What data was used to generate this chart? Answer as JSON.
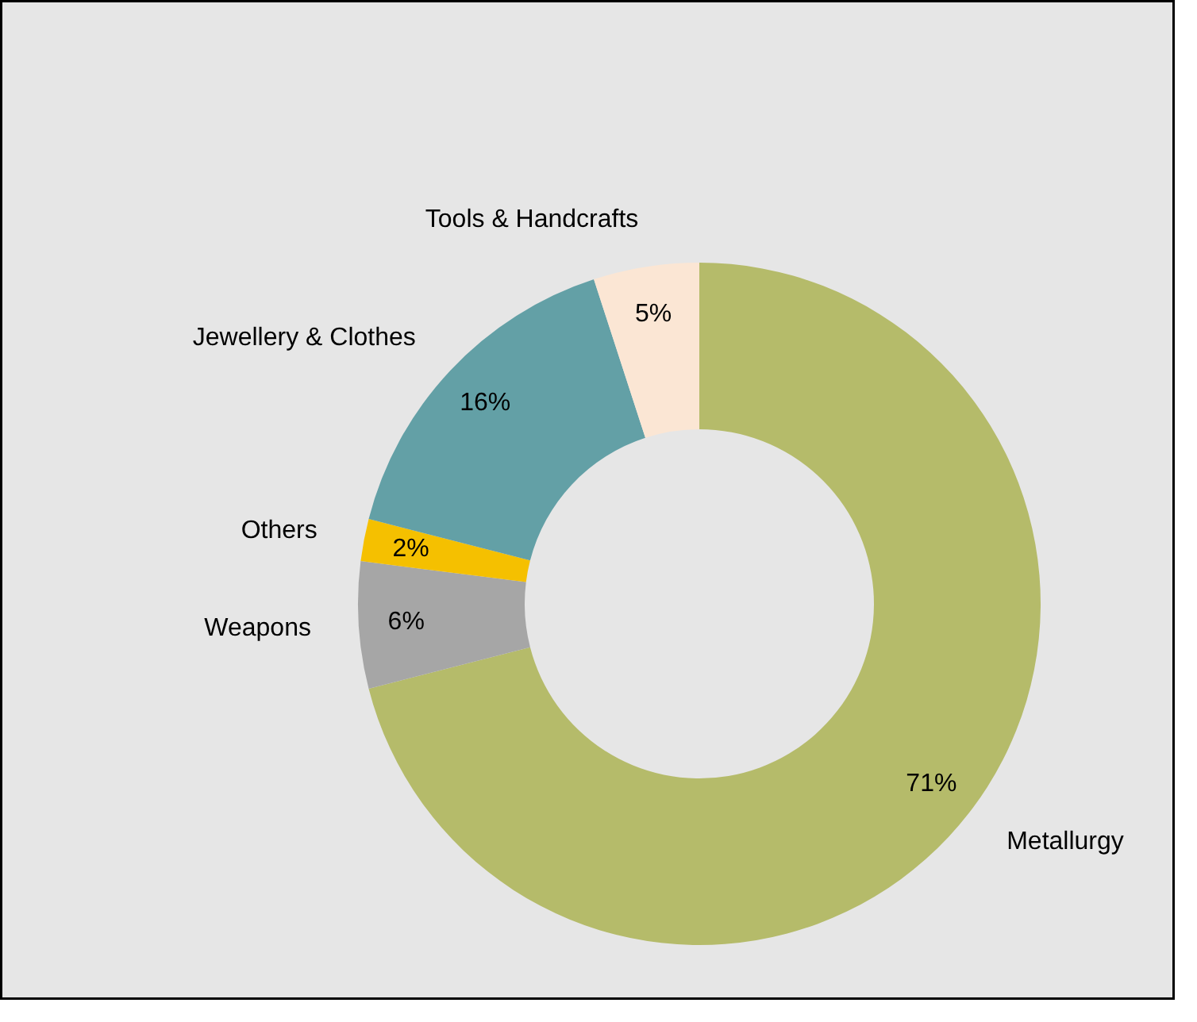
{
  "chart_data": {
    "type": "donut",
    "categories": [
      "Metallurgy",
      "Weapons",
      "Others",
      "Jewellery & Clothes",
      "Tools & Handcrafts"
    ],
    "values": [
      71,
      6,
      2,
      16,
      5
    ],
    "colors": [
      "#b5bb6a",
      "#a6a6a6",
      "#f5c000",
      "#63a0a6",
      "#fbe6d4"
    ],
    "value_labels": [
      "71%",
      "6%",
      "2%",
      "16%",
      "5%"
    ]
  }
}
